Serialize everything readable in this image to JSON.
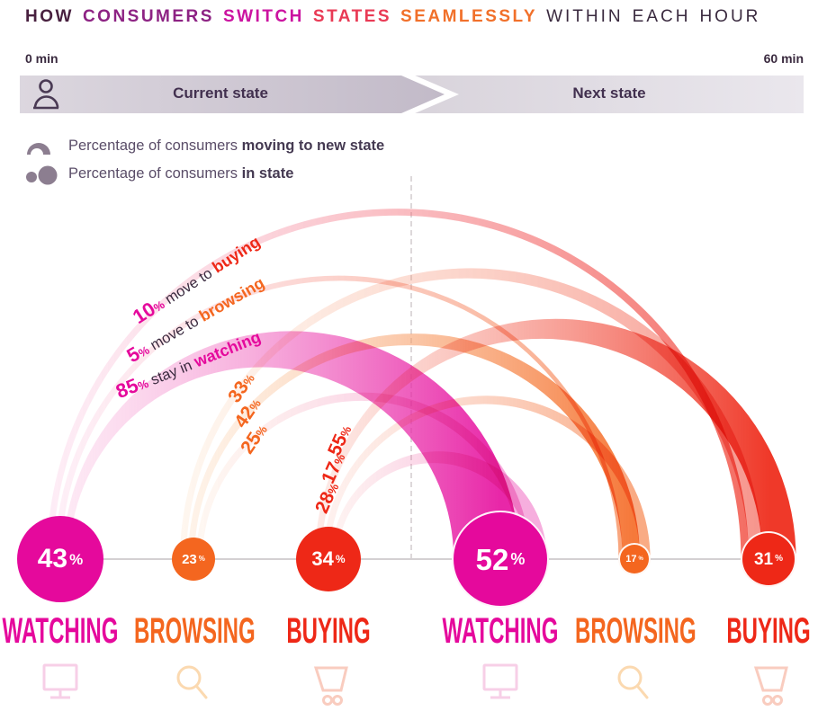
{
  "title": {
    "words": [
      {
        "text": "HOW",
        "color": "#48203f",
        "bold": true
      },
      {
        "text": "CONSUMERS",
        "color": "#8d2283",
        "bold": true
      },
      {
        "text": "SWITCH",
        "color": "#cb13a0",
        "bold": true
      },
      {
        "text": "STATES",
        "color": "#e93a55",
        "bold": true
      },
      {
        "text": "SEAMLESSLY",
        "color": "#f1702a",
        "bold": true
      },
      {
        "text": "WITHIN",
        "color": "#3a2a3f",
        "bold": false
      },
      {
        "text": "EACH",
        "color": "#3a2a3f",
        "bold": false
      },
      {
        "text": "HOUR",
        "color": "#3a2a3f",
        "bold": false
      }
    ]
  },
  "timeline": {
    "start_label": "0 min",
    "end_label": "60 min",
    "current_label": "Current state",
    "next_label": "Next state"
  },
  "legend": {
    "row1_prefix": "Percentage of consumers ",
    "row1_bold": "moving to new state",
    "row2_prefix": "Percentage of consumers ",
    "row2_bold": "in state"
  },
  "chart_data": {
    "type": "arc-transition-diagram",
    "title": "How consumers switch states seamlessly within each hour",
    "axis": {
      "start": "0 min",
      "end": "60 min"
    },
    "columns": {
      "left": "Current state",
      "right": "Next state"
    },
    "states": [
      {
        "id": "watching",
        "label": "WATCHING",
        "color": "#e5099c",
        "color_light": "#f9b8dd",
        "icon": "monitor-icon",
        "icon_color": "#f7cfe7"
      },
      {
        "id": "browsing",
        "label": "BROWSING",
        "color": "#f4661f",
        "color_light": "#fbd0a8",
        "icon": "search-icon",
        "icon_color": "#fbd9b0"
      },
      {
        "id": "buying",
        "label": "BUYING",
        "color": "#ee2817",
        "color_light": "#f9b4a8",
        "icon": "cart-icon",
        "icon_color": "#f9ccbf"
      }
    ],
    "current_state": [
      {
        "state": "watching",
        "percent": 43
      },
      {
        "state": "browsing",
        "percent": 23
      },
      {
        "state": "buying",
        "percent": 34
      }
    ],
    "next_state": [
      {
        "state": "watching",
        "percent": 52
      },
      {
        "state": "browsing",
        "percent": 17
      },
      {
        "state": "buying",
        "percent": 31
      }
    ],
    "transitions": [
      {
        "from": "watching",
        "to": "buying",
        "percent": 10,
        "annotation": "10% move to buying",
        "annotation_parts": {
          "pct": "10",
          "sym": "%",
          "mid": " move to ",
          "target": "buying"
        }
      },
      {
        "from": "watching",
        "to": "browsing",
        "percent": 5,
        "annotation": "5% move to browsing",
        "annotation_parts": {
          "pct": "5",
          "sym": "%",
          "mid": " move to ",
          "target": "browsing"
        }
      },
      {
        "from": "watching",
        "to": "watching",
        "percent": 85,
        "annotation": "85% stay in watching",
        "annotation_parts": {
          "pct": "85",
          "sym": "%",
          "mid": " stay in ",
          "target": "watching"
        }
      },
      {
        "from": "browsing",
        "to": "buying",
        "percent": 33
      },
      {
        "from": "browsing",
        "to": "browsing",
        "percent": 42
      },
      {
        "from": "browsing",
        "to": "watching",
        "percent": 25
      },
      {
        "from": "buying",
        "to": "buying",
        "percent": 55
      },
      {
        "from": "buying",
        "to": "browsing",
        "percent": 17
      },
      {
        "from": "buying",
        "to": "watching",
        "percent": 28
      }
    ]
  }
}
